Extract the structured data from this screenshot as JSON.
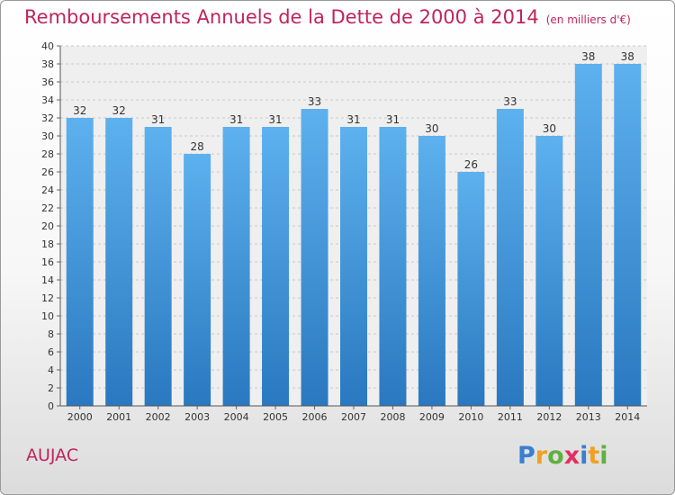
{
  "chart_data": {
    "type": "bar",
    "title": "Remboursements Annuels de la Dette de 2000 à 2014",
    "unit": "(en milliers d'€)",
    "categories": [
      "2000",
      "2001",
      "2002",
      "2003",
      "2004",
      "2005",
      "2006",
      "2007",
      "2008",
      "2009",
      "2010",
      "2011",
      "2012",
      "2013",
      "2014"
    ],
    "values": [
      32,
      32,
      31,
      28,
      31,
      31,
      33,
      31,
      31,
      30,
      26,
      33,
      30,
      38,
      38
    ],
    "ylim": [
      0,
      40
    ],
    "ytick_step": 2,
    "grid": true,
    "bar_color": "#4a9fe0"
  },
  "footer": {
    "commune": "AUJAC",
    "logo": {
      "letters": [
        "P",
        "r",
        "o",
        "x",
        "i",
        "t",
        "i"
      ],
      "colors": [
        "#3a7fd0",
        "#f0a020",
        "#60b040",
        "#e03060",
        "#3a7fd0",
        "#f0a020",
        "#60b040"
      ]
    }
  }
}
